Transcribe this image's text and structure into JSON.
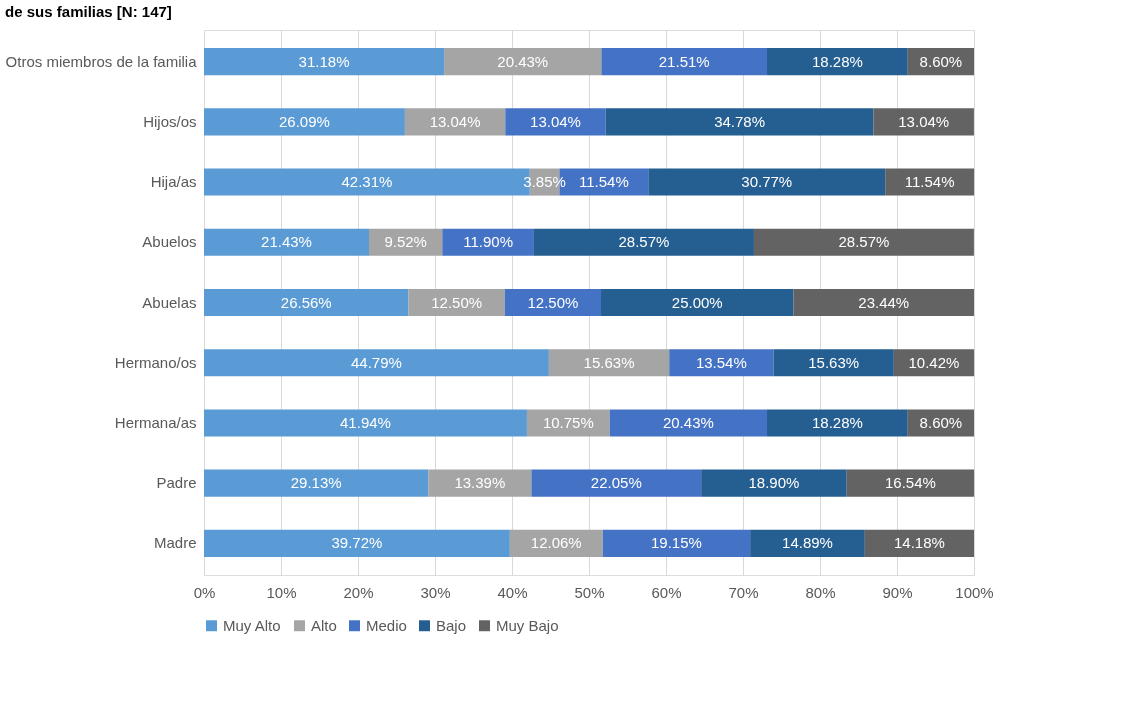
{
  "chart_data": {
    "type": "bar",
    "orientation": "horizontal",
    "stacked": true,
    "title": "de sus familias [N: 147]",
    "categories": [
      "Otros miembros de la familia",
      "Hijos/os",
      "Hija/as",
      "Abuelos",
      "Abuelas",
      "Hermano/os",
      "Hermana/as",
      "Padre",
      "Madre"
    ],
    "series": [
      {
        "name": "Muy Alto",
        "color": "#5b9bd5",
        "values": [
          31.18,
          26.09,
          42.31,
          21.43,
          26.56,
          44.79,
          41.94,
          29.13,
          39.72
        ],
        "value_labels": [
          "31.18%",
          "26.09%",
          "42.31%",
          "21.43%",
          "26.56%",
          "44.79%",
          "41.94%",
          "29.13%",
          "39.72%"
        ]
      },
      {
        "name": "Alto",
        "color": "#a5a5a5",
        "values": [
          20.43,
          13.04,
          3.85,
          9.52,
          12.5,
          15.63,
          10.75,
          13.39,
          12.06
        ],
        "value_labels": [
          "20.43%",
          "13.04%",
          "3.85%",
          "9.52%",
          "12.50%",
          "15.63%",
          "10.75%",
          "13.39%",
          "12.06%"
        ]
      },
      {
        "name": "Medio",
        "color": "#4472c4",
        "values": [
          21.51,
          13.04,
          11.54,
          11.9,
          12.5,
          13.54,
          20.43,
          22.05,
          19.15
        ],
        "value_labels": [
          "21.51%",
          "13.04%",
          "11.54%",
          "11.90%",
          "12.50%",
          "13.54%",
          "20.43%",
          "22.05%",
          "19.15%"
        ]
      },
      {
        "name": "Bajo",
        "color": "#255e91",
        "values": [
          18.28,
          34.78,
          30.77,
          28.57,
          25.0,
          15.63,
          18.28,
          18.9,
          14.89
        ],
        "value_labels": [
          "18.28%",
          "34.78%",
          "30.77%",
          "28.57%",
          "25.00%",
          "15.63%",
          "18.28%",
          "18.90%",
          "14.89%"
        ]
      },
      {
        "name": "Muy Bajo",
        "color": "#636363",
        "values": [
          8.6,
          13.04,
          11.54,
          28.57,
          23.44,
          10.42,
          8.6,
          16.54,
          14.18
        ],
        "value_labels": [
          "8.60%",
          "13.04%",
          "11.54%",
          "28.57%",
          "23.44%",
          "10.42%",
          "8.60%",
          "16.54%",
          "14.18%"
        ]
      }
    ],
    "xlim": [
      0,
      100
    ],
    "xticks": [
      {
        "value": 0,
        "label": "0%"
      },
      {
        "value": 10,
        "label": "10%"
      },
      {
        "value": 20,
        "label": "20%"
      },
      {
        "value": 30,
        "label": "30%"
      },
      {
        "value": 40,
        "label": "40%"
      },
      {
        "value": 50,
        "label": "50%"
      },
      {
        "value": 60,
        "label": "60%"
      },
      {
        "value": 70,
        "label": "70%"
      },
      {
        "value": 80,
        "label": "80%"
      },
      {
        "value": 90,
        "label": "90%"
      },
      {
        "value": 100,
        "label": "100%"
      }
    ],
    "grid": "x",
    "legend": "bottom"
  }
}
